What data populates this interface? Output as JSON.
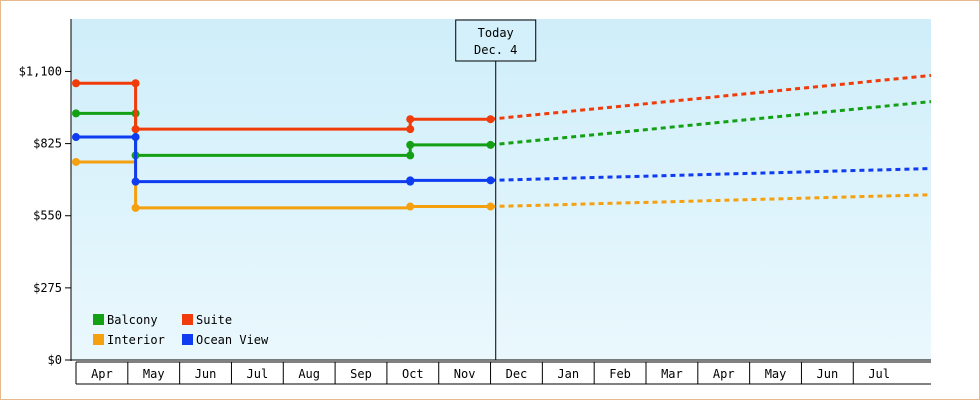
{
  "chart_data": {
    "type": "line",
    "title": "",
    "xlabel": "",
    "ylabel": "",
    "ylim": [
      0,
      1300
    ],
    "yticks": [
      0,
      275,
      550,
      825,
      1100
    ],
    "ytick_labels": [
      "$0",
      "$275",
      "$550",
      "$825",
      "$1,100"
    ],
    "months": [
      "Apr",
      "May",
      "Jun",
      "Jul",
      "Aug",
      "Sep",
      "Oct",
      "Nov",
      "Dec",
      "Jan",
      "Feb",
      "Mar",
      "Apr",
      "May",
      "Jun",
      "Jul"
    ],
    "today_label_line1": "Today",
    "today_label_line2": "Dec. 4",
    "today_position": 8.1,
    "background_gradient": [
      "#cfeefa",
      "#eaf8fd"
    ],
    "grid": false,
    "legend_position": "bottom-left",
    "series": [
      {
        "name": "Balcony",
        "color": "#14a014",
        "step_points": [
          [
            0,
            940
          ],
          [
            1.15,
            940
          ],
          [
            1.15,
            780
          ],
          [
            6.45,
            780
          ],
          [
            6.45,
            820
          ],
          [
            8.0,
            820
          ]
        ],
        "markers": [
          [
            0,
            940
          ],
          [
            1.15,
            940
          ],
          [
            1.15,
            780
          ],
          [
            6.45,
            780
          ],
          [
            6.45,
            820
          ],
          [
            8.0,
            820
          ]
        ],
        "forecast": [
          [
            8.0,
            820
          ],
          [
            16.5,
            985
          ]
        ]
      },
      {
        "name": "Suite",
        "color": "#f03c0a",
        "step_points": [
          [
            0,
            1055
          ],
          [
            1.15,
            1055
          ],
          [
            1.15,
            880
          ],
          [
            6.45,
            880
          ],
          [
            6.45,
            918
          ],
          [
            8.0,
            918
          ]
        ],
        "markers": [
          [
            0,
            1055
          ],
          [
            1.15,
            1055
          ],
          [
            1.15,
            880
          ],
          [
            6.45,
            880
          ],
          [
            6.45,
            918
          ],
          [
            8.0,
            918
          ]
        ],
        "forecast": [
          [
            8.0,
            918
          ],
          [
            16.5,
            1085
          ]
        ]
      },
      {
        "name": "Interior",
        "color": "#f5a00f",
        "step_points": [
          [
            0,
            755
          ],
          [
            1.15,
            755
          ],
          [
            1.15,
            580
          ],
          [
            6.45,
            580
          ],
          [
            6.45,
            585
          ],
          [
            8.0,
            585
          ]
        ],
        "markers": [
          [
            0,
            755
          ],
          [
            1.15,
            580
          ],
          [
            6.45,
            585
          ],
          [
            8.0,
            585
          ]
        ],
        "forecast": [
          [
            8.0,
            585
          ],
          [
            16.5,
            630
          ]
        ]
      },
      {
        "name": "Ocean View",
        "color": "#0f3cf0",
        "step_points": [
          [
            0,
            850
          ],
          [
            1.15,
            850
          ],
          [
            1.15,
            680
          ],
          [
            6.45,
            680
          ],
          [
            6.45,
            685
          ],
          [
            8.0,
            685
          ]
        ],
        "markers": [
          [
            0,
            850
          ],
          [
            1.15,
            850
          ],
          [
            1.15,
            680
          ],
          [
            6.45,
            680
          ],
          [
            6.45,
            685
          ],
          [
            8.0,
            685
          ]
        ],
        "forecast": [
          [
            8.0,
            685
          ],
          [
            16.5,
            730
          ]
        ]
      }
    ],
    "legend": [
      {
        "name": "Balcony",
        "color": "#14a014"
      },
      {
        "name": "Suite",
        "color": "#f03c0a"
      },
      {
        "name": "Interior",
        "color": "#f5a00f"
      },
      {
        "name": "Ocean View",
        "color": "#0f3cf0"
      }
    ]
  }
}
